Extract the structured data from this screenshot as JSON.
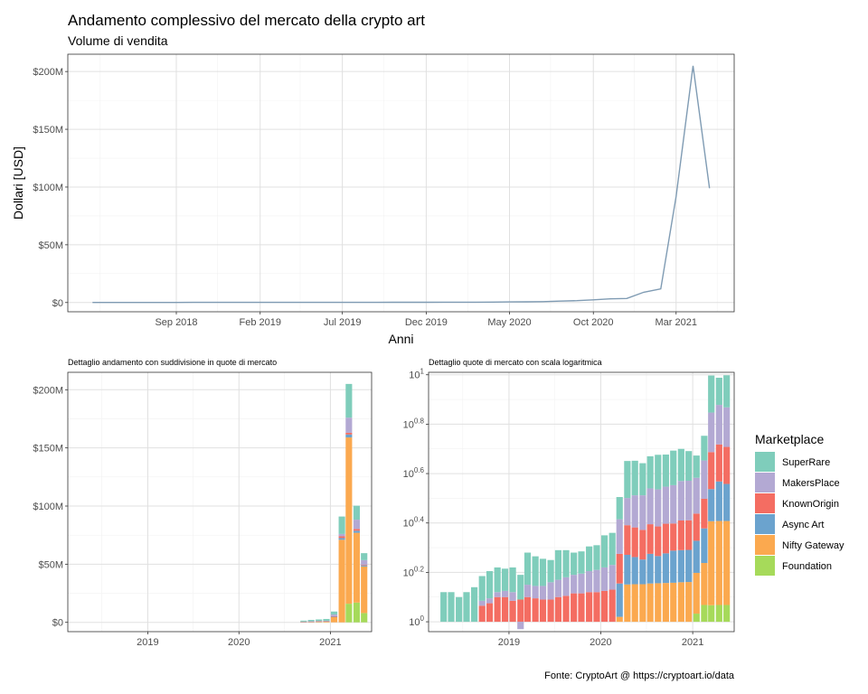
{
  "caption": "Fonte: CryptoArt @ https://cryptoart.io/data",
  "legend": {
    "title": "Marketplace",
    "items": [
      {
        "label": "SuperRare",
        "color": "#7FCDBB"
      },
      {
        "label": "MakersPlace",
        "color": "#B3A9D3"
      },
      {
        "label": "KnownOrigin",
        "color": "#F46D62"
      },
      {
        "label": "Async Art",
        "color": "#6BA3CE"
      },
      {
        "label": "Nifty Gateway",
        "color": "#FBA94F"
      },
      {
        "label": "Foundation",
        "color": "#A6DA5A"
      }
    ]
  },
  "chart_data": [
    {
      "type": "line",
      "title": "Andamento complessivo del mercato della crypto art",
      "subtitle": "Volume di vendita",
      "xlabel": "Anni",
      "ylabel": "Dollari [USD]",
      "xticks": [
        "Sep 2018",
        "Feb 2019",
        "Jul 2019",
        "Dec 2019",
        "May 2020",
        "Oct 2020",
        "Mar 2021"
      ],
      "yticks": [
        "$0",
        "$50M",
        "$100M",
        "$150M",
        "$200M"
      ],
      "ylim": [
        -8,
        215
      ],
      "xlim": [
        "2018-02-15",
        "2021-06-15"
      ],
      "line_color": "#7F9BB3",
      "series": [
        {
          "x": [
            "2018-04-01",
            "2018-05-01",
            "2018-06-01",
            "2018-07-01",
            "2018-08-01",
            "2018-09-01",
            "2018-10-01",
            "2018-11-01",
            "2018-12-01",
            "2019-01-01",
            "2019-02-01",
            "2019-03-01",
            "2019-04-01",
            "2019-05-01",
            "2019-06-01",
            "2019-07-01",
            "2019-08-01",
            "2019-09-01",
            "2019-10-01",
            "2019-11-01",
            "2019-12-01",
            "2020-01-01",
            "2020-02-01",
            "2020-03-01",
            "2020-04-01",
            "2020-05-01",
            "2020-06-01",
            "2020-07-01",
            "2020-08-01",
            "2020-09-01",
            "2020-10-01",
            "2020-11-01",
            "2020-12-01",
            "2021-01-01",
            "2021-02-01",
            "2021-03-01",
            "2021-04-01",
            "2021-05-01"
          ],
          "values": [
            0.05,
            0.05,
            0.05,
            0.05,
            0.06,
            0.08,
            0.1,
            0.1,
            0.1,
            0.1,
            0.1,
            0.1,
            0.12,
            0.15,
            0.15,
            0.15,
            0.15,
            0.15,
            0.2,
            0.2,
            0.2,
            0.3,
            0.3,
            0.3,
            0.4,
            0.5,
            0.6,
            0.8,
            1.2,
            1.6,
            2.3,
            3.2,
            3.5,
            8.9,
            11.8,
            92,
            205,
            99
          ]
        }
      ]
    },
    {
      "type": "bar",
      "stacked": true,
      "title": "Dettaglio andamento con suddivisione in quote di mercato",
      "xticks": [
        "2019",
        "2020",
        "2021"
      ],
      "yticks": [
        "$0",
        "$50M",
        "$100M",
        "$150M",
        "$200M"
      ],
      "ylim": [
        -8,
        215
      ],
      "xlim": [
        "2018-02-15",
        "2021-06-15"
      ],
      "months": [
        "2020-09-01",
        "2020-10-01",
        "2020-11-01",
        "2020-12-01",
        "2021-01-01",
        "2021-02-01",
        "2021-03-01",
        "2021-04-01",
        "2021-05-01"
      ],
      "series": [
        {
          "name": "Foundation",
          "values": [
            0,
            0,
            0,
            0,
            0,
            0,
            16,
            17,
            8
          ]
        },
        {
          "name": "Nifty Gateway",
          "values": [
            0.3,
            0.5,
            0.6,
            0.8,
            4.5,
            71,
            143,
            60,
            40
          ]
        },
        {
          "name": "Async Art",
          "values": [
            0.2,
            0.2,
            0.3,
            0.3,
            0.4,
            1.5,
            2.5,
            1.8,
            1
          ]
        },
        {
          "name": "KnownOrigin",
          "values": [
            0.1,
            0.1,
            0.1,
            0.1,
            0.4,
            1.5,
            1.5,
            1.5,
            0.5
          ]
        },
        {
          "name": "MakersPlace",
          "values": [
            0.1,
            0.2,
            0.2,
            0.2,
            1.5,
            2,
            13,
            8,
            4
          ]
        },
        {
          "name": "SuperRare",
          "values": [
            0.8,
            1.1,
            1.3,
            1.5,
            2.5,
            15,
            29,
            12,
            6
          ]
        }
      ]
    },
    {
      "type": "bar",
      "stacked": true,
      "log_scale": true,
      "title": "Dettaglio quote di mercato con scala logaritmica",
      "xticks": [
        "2019",
        "2020",
        "2021"
      ],
      "yticks": [
        "10^0",
        "10^0.2",
        "10^0.4",
        "10^0.6",
        "10^0.8",
        "10^1"
      ],
      "xlim": [
        "2018-02-15",
        "2021-06-15"
      ],
      "months": [
        "2018-04-01",
        "2018-05-01",
        "2018-06-01",
        "2018-07-01",
        "2018-08-01",
        "2018-09-01",
        "2018-10-01",
        "2018-11-01",
        "2018-12-01",
        "2019-01-01",
        "2019-02-01",
        "2019-03-01",
        "2019-04-01",
        "2019-05-01",
        "2019-06-01",
        "2019-07-01",
        "2019-08-01",
        "2019-09-01",
        "2019-10-01",
        "2019-11-01",
        "2019-12-01",
        "2020-01-01",
        "2020-02-01",
        "2020-03-01",
        "2020-04-01",
        "2020-05-01",
        "2020-06-01",
        "2020-07-01",
        "2020-08-01",
        "2020-09-01",
        "2020-10-01",
        "2020-11-01",
        "2020-12-01",
        "2021-01-01",
        "2021-02-01",
        "2021-03-01",
        "2021-04-01",
        "2021-05-01"
      ],
      "series": [
        {
          "name": "Foundation",
          "values": [
            0,
            0,
            0,
            0,
            0,
            0,
            0,
            0,
            0,
            0,
            0,
            0,
            0,
            0,
            0,
            0,
            0,
            0,
            0,
            0,
            0,
            0,
            0,
            0,
            0,
            0,
            0,
            0,
            0,
            0,
            0,
            0,
            0,
            0.033,
            0.068,
            0.067,
            0.068,
            0.068
          ]
        },
        {
          "name": "Nifty Gateway",
          "values": [
            0,
            0,
            0,
            0,
            0,
            0,
            0,
            0,
            0,
            0,
            0,
            0,
            0,
            0,
            0,
            0,
            0,
            0,
            0,
            0,
            0,
            0,
            0,
            0.02,
            0.151,
            0.152,
            0.152,
            0.155,
            0.156,
            0.157,
            0.158,
            0.16,
            0.161,
            0.165,
            0.17,
            0.34,
            0.34,
            0.34
          ]
        },
        {
          "name": "Async Art",
          "values": [
            0,
            0,
            0,
            0,
            0,
            0,
            0,
            0,
            0,
            0,
            0,
            0,
            0,
            0,
            0,
            0,
            0,
            0,
            0,
            0,
            0,
            0,
            0,
            0.135,
            0.12,
            0.11,
            0.1,
            0.12,
            0.11,
            0.12,
            0.13,
            0.13,
            0.13,
            0.13,
            0.14,
            0.13,
            0.16,
            0.15
          ]
        },
        {
          "name": "KnownOrigin",
          "values": [
            0,
            0,
            0,
            0,
            0,
            0.065,
            0.075,
            0.1,
            0.1,
            0.085,
            0.09,
            0.1,
            0.095,
            0.09,
            0.09,
            0.1,
            0.105,
            0.115,
            0.115,
            0.12,
            0.12,
            0.125,
            0.13,
            0.12,
            0.12,
            0.12,
            0.12,
            0.12,
            0.12,
            0.12,
            0.11,
            0.12,
            0.12,
            0.11,
            0.12,
            0.15,
            0.15,
            0.15
          ]
        },
        {
          "name": "MakersPlace",
          "values": [
            0,
            0,
            0,
            0,
            0,
            0.02,
            0.02,
            0.02,
            0.025,
            0.035,
            -0.03,
            0.05,
            0.05,
            0.055,
            0.07,
            0.07,
            0.075,
            0.075,
            0.08,
            0.085,
            0.09,
            0.095,
            0.1,
            0.14,
            0.11,
            0.13,
            0.14,
            0.145,
            0.15,
            0.15,
            0.155,
            0.16,
            0.16,
            0.145,
            0.155,
            0.16,
            0.16,
            0.16
          ]
        },
        {
          "name": "SuperRare",
          "values": [
            0.12,
            0.12,
            0.1,
            0.12,
            0.14,
            0.1,
            0.11,
            0.1,
            0.09,
            0.1,
            0.1,
            0.13,
            0.12,
            0.11,
            0.09,
            0.12,
            0.11,
            0.09,
            0.09,
            0.1,
            0.1,
            0.13,
            0.13,
            0.09,
            0.15,
            0.14,
            0.13,
            0.13,
            0.14,
            0.13,
            0.14,
            0.13,
            0.12,
            0.09,
            0.1,
            0.15,
            0.11,
            0.13
          ]
        }
      ]
    }
  ]
}
